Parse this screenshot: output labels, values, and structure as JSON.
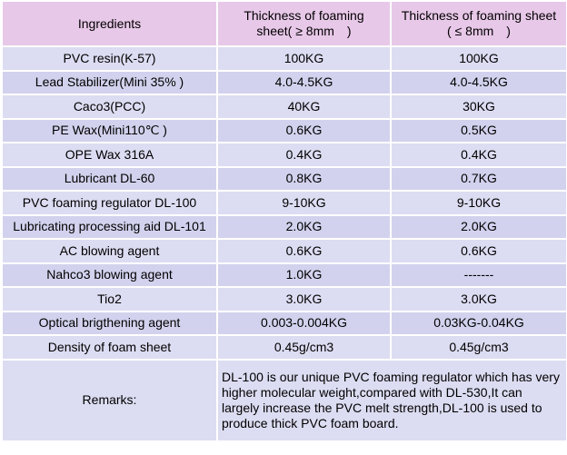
{
  "headers": {
    "col1": "Ingredients",
    "col2_line1": "Thickness of foaming",
    "col2_line2": "sheet( ≥ 8mm　)",
    "col3_line1": "Thickness of foaming sheet",
    "col3_line2": "( ≤ 8mm　)"
  },
  "rows": [
    {
      "ingredient": "PVC resin(K-57)",
      "thick": "100KG",
      "thin": "100KG"
    },
    {
      "ingredient": "Lead Stabilizer(Mini 35% )",
      "thick": "4.0-4.5KG",
      "thin": "4.0-4.5KG"
    },
    {
      "ingredient": "Caco3(PCC)",
      "thick": "40KG",
      "thin": "30KG"
    },
    {
      "ingredient": "PE Wax(Mini110℃ )",
      "thick": "0.6KG",
      "thin": "0.5KG"
    },
    {
      "ingredient": "OPE Wax 316A",
      "thick": "0.4KG",
      "thin": "0.4KG"
    },
    {
      "ingredient": "Lubricant DL-60",
      "thick": "0.8KG",
      "thin": "0.7KG"
    },
    {
      "ingredient": "PVC foaming regulator DL-100",
      "thick": "9-10KG",
      "thin": "9-10KG"
    },
    {
      "ingredient": "Lubricating processing aid DL-101",
      "thick": "2.0KG",
      "thin": "2.0KG"
    },
    {
      "ingredient": "AC blowing agent",
      "thick": "0.6KG",
      "thin": "0.6KG"
    },
    {
      "ingredient": "Nahco3 blowing agent",
      "thick": "1.0KG",
      "thin": "-------"
    },
    {
      "ingredient": "Tio2",
      "thick": "3.0KG",
      "thin": "3.0KG"
    },
    {
      "ingredient": "Optical brigthening agent",
      "thick": "0.003-0.004KG",
      "thin": "0.03KG-0.04KG"
    },
    {
      "ingredient": "Density of foam sheet",
      "thick": "0.45g/cm3",
      "thin": "0.45g/cm3"
    }
  ],
  "remarks": {
    "label": "Remarks:",
    "text": "DL-100 is our unique PVC foaming regulator which has very higher molecular weight,compared with DL-530,It can largely increase the PVC melt strength,DL-100 is used to produce thick PVC foam board."
  },
  "colors": {
    "header_bg": "#e8c8e8",
    "row_bg": "#dcdcf2"
  }
}
